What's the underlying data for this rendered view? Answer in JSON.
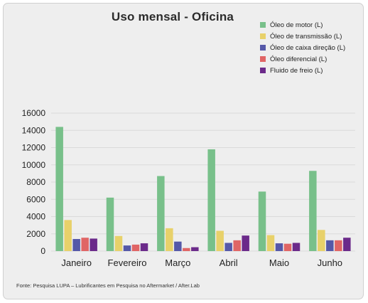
{
  "chart_data": {
    "type": "bar",
    "title": "Uso mensal - Oficina",
    "categories": [
      "Janeiro",
      "Fevereiro",
      "Março",
      "Abril",
      "Maio",
      "Junho"
    ],
    "series": [
      {
        "name": "Óleo de motor (L)",
        "color": "#78c08a",
        "values": [
          14400,
          6200,
          8700,
          11800,
          6900,
          9300
        ]
      },
      {
        "name": "Óleo de transmissão (L)",
        "color": "#e8d16a",
        "values": [
          3600,
          1750,
          2650,
          2350,
          1850,
          2450
        ]
      },
      {
        "name": "Óleo de caixa direção (L)",
        "color": "#5558a8",
        "values": [
          1400,
          650,
          1100,
          950,
          900,
          1250
        ]
      },
      {
        "name": "Óleo diferencial (L)",
        "color": "#e06565",
        "values": [
          1550,
          750,
          350,
          1250,
          850,
          1250
        ]
      },
      {
        "name": "Fluido de freio (L)",
        "color": "#6b2a8a",
        "values": [
          1450,
          900,
          450,
          1800,
          950,
          1550
        ]
      }
    ],
    "y_ticks": [
      "0",
      "2000",
      "4000",
      "6000",
      "8000",
      "10000",
      "12000",
      "14000",
      "16000"
    ],
    "ylim": [
      0,
      16000
    ],
    "grid": true,
    "legend": "top-right"
  },
  "source_note": "Fonte: Pesquisa LUPA – Lubrificantes em Pesquisa no Aftermarket / After.Lab"
}
